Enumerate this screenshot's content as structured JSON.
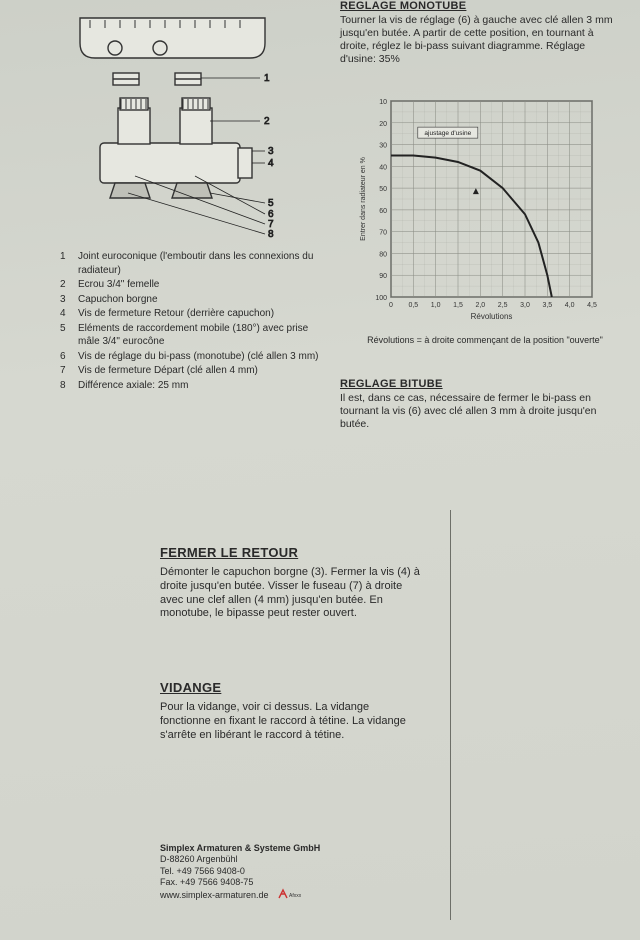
{
  "doc": {
    "diagram_labels": [
      "1",
      "2",
      "3",
      "4",
      "5",
      "6",
      "7",
      "8"
    ],
    "parts": [
      {
        "n": "1",
        "t": "Joint euroconique (l'emboutir dans les connexions du radiateur)"
      },
      {
        "n": "2",
        "t": "Ecrou 3/4\" femelle"
      },
      {
        "n": "3",
        "t": "Capuchon borgne"
      },
      {
        "n": "4",
        "t": "Vis de fermeture Retour (derrière capuchon)"
      },
      {
        "n": "5",
        "t": "Eléments de raccordement mobile (180°) avec prise mâle 3/4\" eurocône"
      },
      {
        "n": "6",
        "t": "Vis de réglage du bi-pass (monotube) (clé allen 3 mm)"
      },
      {
        "n": "7",
        "t": "Vis de fermeture Départ (clé allen 4 mm)"
      },
      {
        "n": "8",
        "t": "Différence axiale: 25 mm"
      }
    ],
    "monotube": {
      "heading": "REGLAGE MONOTUBE",
      "body": "Tourner la vis de réglage (6) à gauche avec clé allen 3 mm jusqu'en butée. A partir de cette position, en tournant à droite, réglez le bi-pass suivant diagramme. Réglage d'usine: 35%"
    },
    "chart": {
      "type": "line",
      "x_label": "Révolutions",
      "y_label": "Entrer dans radiateur en %",
      "annotation": "ajustage d'usine",
      "xlim": [
        0,
        4.5
      ],
      "ylim_pct_top_to_bottom": [
        10,
        100
      ],
      "x_ticks": [
        "0",
        "0,5",
        "1,0",
        "1,5",
        "2,0",
        "2,5",
        "3,0",
        "3,5",
        "4,0",
        "4,5"
      ],
      "y_ticks": [
        "10",
        "20",
        "30",
        "40",
        "50",
        "60",
        "70",
        "80",
        "90",
        "100"
      ],
      "curve_points_xy_pct": [
        [
          0,
          35
        ],
        [
          0.5,
          35
        ],
        [
          1.0,
          36
        ],
        [
          1.5,
          38
        ],
        [
          2.0,
          42
        ],
        [
          2.5,
          50
        ],
        [
          3.0,
          62
        ],
        [
          3.3,
          75
        ],
        [
          3.5,
          90
        ],
        [
          3.6,
          100
        ]
      ],
      "grid_color": "#8a8c84",
      "line_color": "#222222",
      "line_width": 2
    },
    "chart_caption": "Révolutions = à droite commençant de la position \"ouverte\"",
    "bitube": {
      "heading": "REGLAGE BITUBE",
      "body": "Il est, dans ce cas, nécessaire de fermer le bi-pass en tournant la vis (6) avec clé allen 3 mm à droite jusqu'en butée."
    },
    "fermer": {
      "heading": "FERMER LE RETOUR",
      "body": "Démonter le capuchon borgne (3). Fermer la vis (4) à droite jusqu'en butée. Visser le fuseau (7) à droite avec une clef allen (4 mm) jusqu'en butée. En monotube, le bipasse peut rester ouvert."
    },
    "vidange": {
      "heading": "VIDANGE",
      "body": "Pour la vidange, voir ci dessus. La vidange fonctionne en fixant le raccord à tétine. La vidange s'arrête en libérant le raccord à tétine."
    },
    "footer": {
      "company": "Simplex Armaturen & Systeme GmbH",
      "addr": "D-88260 Argenbühl",
      "tel": "Tel. +49 7566 9408-0",
      "fax": "Fax. +49 7566 9408-75",
      "web": "www.simplex-armaturen.de"
    }
  }
}
